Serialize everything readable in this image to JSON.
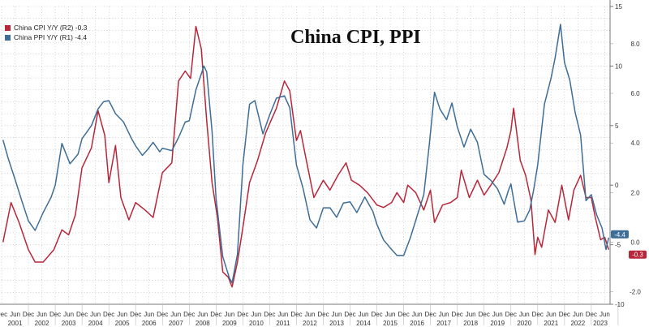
{
  "chart_data": {
    "type": "line",
    "title": "China CPI, PPI",
    "legend": {
      "placement": "top-left",
      "entries": [
        {
          "series": "cpi",
          "label": "China CPI Y/Y (R2) -0.3"
        },
        {
          "series": "ppi",
          "label": "China PPI Y/Y (R1) -4.4"
        }
      ]
    },
    "y_axis_r1": {
      "ticks": [
        "15",
        "10",
        "5",
        "0",
        "-5",
        "-10"
      ],
      "range": [
        -10,
        15
      ]
    },
    "y_axis_r2": {
      "ticks": [
        "8.0",
        "6.0",
        "4.0",
        "2.0",
        "0.0",
        "-2.0"
      ],
      "range": [
        -2.5,
        9.5
      ]
    },
    "x_axis": {
      "range": [
        2000.95,
        2023.65
      ],
      "month_labels": [
        "Dec",
        "Jun"
      ],
      "years": [
        "2001",
        "2002",
        "2003",
        "2004",
        "2005",
        "2006",
        "2007",
        "2008",
        "2009",
        "2010",
        "2011",
        "2012",
        "2013",
        "2014",
        "2015",
        "2016",
        "2017",
        "2018",
        "2019",
        "2020",
        "2021",
        "2022",
        "2023"
      ]
    },
    "grid": true,
    "series": [
      {
        "id": "cpi",
        "name": "China CPI Y/Y",
        "axis": "R2",
        "color": "#b8263a",
        "last_value": "-0.3",
        "points": [
          [
            2001.0,
            0.0
          ],
          [
            2001.3,
            1.6
          ],
          [
            2001.6,
            0.8
          ],
          [
            2001.95,
            -0.3
          ],
          [
            2002.2,
            -0.8
          ],
          [
            2002.5,
            -0.8
          ],
          [
            2002.9,
            -0.3
          ],
          [
            2003.2,
            0.5
          ],
          [
            2003.45,
            0.3
          ],
          [
            2003.7,
            1.1
          ],
          [
            2003.95,
            3.0
          ],
          [
            2004.3,
            3.8
          ],
          [
            2004.55,
            5.3
          ],
          [
            2004.8,
            4.3
          ],
          [
            2004.95,
            2.4
          ],
          [
            2005.2,
            3.9
          ],
          [
            2005.4,
            1.8
          ],
          [
            2005.7,
            0.9
          ],
          [
            2005.95,
            1.6
          ],
          [
            2006.3,
            1.3
          ],
          [
            2006.6,
            1.0
          ],
          [
            2006.95,
            2.8
          ],
          [
            2007.3,
            3.2
          ],
          [
            2007.55,
            6.5
          ],
          [
            2007.8,
            6.9
          ],
          [
            2008.0,
            6.6
          ],
          [
            2008.2,
            8.7
          ],
          [
            2008.4,
            7.8
          ],
          [
            2008.6,
            4.9
          ],
          [
            2008.8,
            2.4
          ],
          [
            2009.0,
            1.0
          ],
          [
            2009.2,
            -1.2
          ],
          [
            2009.4,
            -1.4
          ],
          [
            2009.55,
            -1.8
          ],
          [
            2009.75,
            -0.8
          ],
          [
            2009.95,
            0.6
          ],
          [
            2010.2,
            2.4
          ],
          [
            2010.5,
            3.3
          ],
          [
            2010.8,
            4.4
          ],
          [
            2011.0,
            4.9
          ],
          [
            2011.2,
            5.4
          ],
          [
            2011.5,
            6.5
          ],
          [
            2011.7,
            6.1
          ],
          [
            2011.95,
            4.1
          ],
          [
            2012.1,
            4.5
          ],
          [
            2012.3,
            3.4
          ],
          [
            2012.6,
            1.8
          ],
          [
            2012.95,
            2.5
          ],
          [
            2013.2,
            2.1
          ],
          [
            2013.5,
            2.7
          ],
          [
            2013.8,
            3.2
          ],
          [
            2014.0,
            2.5
          ],
          [
            2014.3,
            2.3
          ],
          [
            2014.6,
            2.0
          ],
          [
            2014.95,
            1.5
          ],
          [
            2015.2,
            1.4
          ],
          [
            2015.5,
            1.6
          ],
          [
            2015.7,
            2.0
          ],
          [
            2015.95,
            1.6
          ],
          [
            2016.1,
            2.3
          ],
          [
            2016.4,
            2.0
          ],
          [
            2016.7,
            1.3
          ],
          [
            2016.95,
            2.1
          ],
          [
            2017.1,
            0.8
          ],
          [
            2017.4,
            1.5
          ],
          [
            2017.7,
            1.6
          ],
          [
            2017.95,
            1.8
          ],
          [
            2018.1,
            2.9
          ],
          [
            2018.4,
            1.8
          ],
          [
            2018.7,
            2.5
          ],
          [
            2018.95,
            1.9
          ],
          [
            2019.2,
            2.3
          ],
          [
            2019.5,
            2.8
          ],
          [
            2019.8,
            3.8
          ],
          [
            2019.95,
            4.5
          ],
          [
            2020.05,
            5.4
          ],
          [
            2020.3,
            3.3
          ],
          [
            2020.5,
            2.7
          ],
          [
            2020.7,
            1.7
          ],
          [
            2020.85,
            -0.5
          ],
          [
            2020.95,
            0.2
          ],
          [
            2021.1,
            -0.2
          ],
          [
            2021.35,
            1.3
          ],
          [
            2021.6,
            0.8
          ],
          [
            2021.85,
            2.3
          ],
          [
            2022.1,
            0.9
          ],
          [
            2022.3,
            2.1
          ],
          [
            2022.55,
            2.7
          ],
          [
            2022.75,
            1.8
          ],
          [
            2022.95,
            1.8
          ],
          [
            2023.1,
            1.0
          ],
          [
            2023.3,
            0.1
          ],
          [
            2023.45,
            0.2
          ],
          [
            2023.6,
            -0.3
          ]
        ]
      },
      {
        "id": "ppi",
        "name": "China PPI Y/Y",
        "axis": "R1",
        "color": "#3e6d96",
        "last_value": "-4.4",
        "points": [
          [
            2001.0,
            3.8
          ],
          [
            2001.2,
            2.2
          ],
          [
            2001.45,
            0.5
          ],
          [
            2001.7,
            -1.3
          ],
          [
            2001.95,
            -3.0
          ],
          [
            2002.2,
            -3.8
          ],
          [
            2002.5,
            -2.3
          ],
          [
            2002.8,
            -1.0
          ],
          [
            2002.95,
            0.0
          ],
          [
            2003.2,
            3.5
          ],
          [
            2003.5,
            1.8
          ],
          [
            2003.8,
            2.6
          ],
          [
            2003.95,
            3.9
          ],
          [
            2004.3,
            5.0
          ],
          [
            2004.55,
            6.4
          ],
          [
            2004.75,
            7.0
          ],
          [
            2004.95,
            7.1
          ],
          [
            2005.2,
            6.0
          ],
          [
            2005.5,
            5.3
          ],
          [
            2005.8,
            3.9
          ],
          [
            2005.95,
            3.3
          ],
          [
            2006.2,
            2.5
          ],
          [
            2006.4,
            3.0
          ],
          [
            2006.6,
            3.6
          ],
          [
            2006.85,
            2.8
          ],
          [
            2006.95,
            3.1
          ],
          [
            2007.3,
            2.9
          ],
          [
            2007.55,
            4.0
          ],
          [
            2007.8,
            5.3
          ],
          [
            2007.95,
            5.4
          ],
          [
            2008.2,
            8.0
          ],
          [
            2008.5,
            10.0
          ],
          [
            2008.6,
            9.5
          ],
          [
            2008.8,
            4.5
          ],
          [
            2008.95,
            -1.1
          ],
          [
            2009.2,
            -6.0
          ],
          [
            2009.45,
            -7.8
          ],
          [
            2009.55,
            -8.2
          ],
          [
            2009.75,
            -5.8
          ],
          [
            2009.95,
            1.7
          ],
          [
            2010.2,
            6.8
          ],
          [
            2010.4,
            7.1
          ],
          [
            2010.7,
            4.3
          ],
          [
            2010.95,
            5.9
          ],
          [
            2011.2,
            7.3
          ],
          [
            2011.5,
            7.5
          ],
          [
            2011.7,
            6.5
          ],
          [
            2011.95,
            1.7
          ],
          [
            2012.2,
            -0.3
          ],
          [
            2012.45,
            -2.9
          ],
          [
            2012.7,
            -3.6
          ],
          [
            2012.95,
            -1.9
          ],
          [
            2013.2,
            -1.9
          ],
          [
            2013.45,
            -2.7
          ],
          [
            2013.7,
            -1.5
          ],
          [
            2013.95,
            -1.4
          ],
          [
            2014.2,
            -2.3
          ],
          [
            2014.5,
            -1.0
          ],
          [
            2014.8,
            -2.2
          ],
          [
            2014.95,
            -3.3
          ],
          [
            2015.2,
            -4.6
          ],
          [
            2015.5,
            -5.4
          ],
          [
            2015.7,
            -5.9
          ],
          [
            2015.95,
            -5.9
          ],
          [
            2016.2,
            -4.4
          ],
          [
            2016.45,
            -2.6
          ],
          [
            2016.7,
            -0.8
          ],
          [
            2016.9,
            3.3
          ],
          [
            2017.1,
            7.8
          ],
          [
            2017.3,
            6.4
          ],
          [
            2017.55,
            5.5
          ],
          [
            2017.75,
            6.9
          ],
          [
            2017.95,
            4.9
          ],
          [
            2018.2,
            3.2
          ],
          [
            2018.45,
            4.7
          ],
          [
            2018.7,
            3.6
          ],
          [
            2018.95,
            0.9
          ],
          [
            2019.2,
            0.4
          ],
          [
            2019.45,
            -0.3
          ],
          [
            2019.7,
            -1.6
          ],
          [
            2019.85,
            -0.5
          ],
          [
            2019.95,
            0.1
          ],
          [
            2020.2,
            -3.1
          ],
          [
            2020.45,
            -3.0
          ],
          [
            2020.65,
            -2.1
          ],
          [
            2020.8,
            -0.4
          ],
          [
            2020.95,
            1.7
          ],
          [
            2021.2,
            6.8
          ],
          [
            2021.45,
            9.0
          ],
          [
            2021.6,
            10.7
          ],
          [
            2021.8,
            13.5
          ],
          [
            2021.95,
            10.3
          ],
          [
            2022.15,
            8.8
          ],
          [
            2022.35,
            6.1
          ],
          [
            2022.55,
            4.2
          ],
          [
            2022.75,
            -1.3
          ],
          [
            2022.95,
            -0.8
          ],
          [
            2023.15,
            -2.5
          ],
          [
            2023.35,
            -3.6
          ],
          [
            2023.5,
            -5.4
          ],
          [
            2023.6,
            -4.4
          ]
        ]
      }
    ]
  }
}
